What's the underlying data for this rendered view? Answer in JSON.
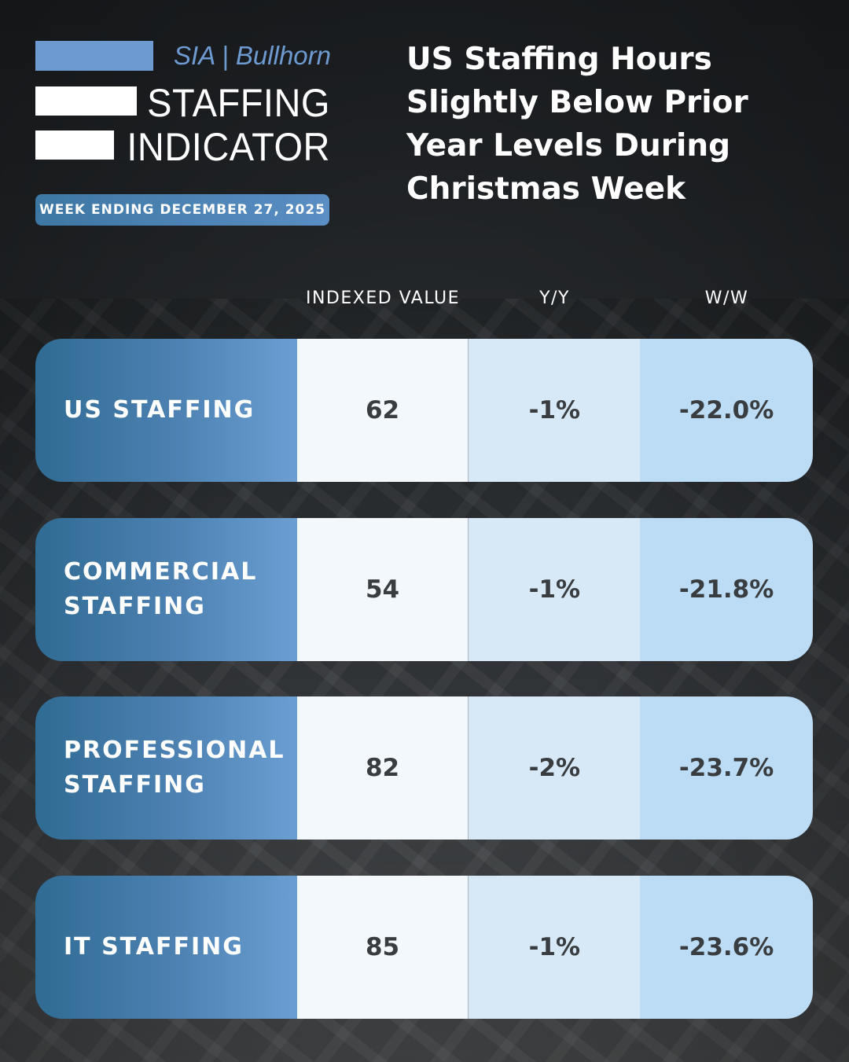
{
  "brand": {
    "name": "SIA | Bullhorn",
    "title_line1": "STAFFING",
    "title_line2": "INDICATOR"
  },
  "week_label": "WEEK ENDING DECEMBER 27, 2025",
  "headline": [
    "US Staffing Hours",
    "Slightly Below Prior",
    "Year Levels During",
    "Christmas Week"
  ],
  "columns": {
    "indexed_value": "INDEXED VALUE",
    "yy": "Y/Y",
    "ww": "W/W"
  },
  "rows": [
    {
      "label": "US STAFFING",
      "indexed_value": "62",
      "yy": "-1%",
      "ww": "-22.0%"
    },
    {
      "label": "COMMERCIAL STAFFING",
      "indexed_value": "54",
      "yy": "-1%",
      "ww": "-21.8%"
    },
    {
      "label": "PROFESSIONAL STAFFING",
      "indexed_value": "82",
      "yy": "-2%",
      "ww": "-23.7%"
    },
    {
      "label": "IT STAFFING",
      "indexed_value": "85",
      "yy": "-1%",
      "ww": "-23.6%"
    }
  ],
  "colors": {
    "accent_blue": "#6d9bd1",
    "label_dark": "#2f6b93",
    "cell_light": "#f3f8fc",
    "cell_mid": "#d7e8f6",
    "cell_blue": "#bbdcf4"
  }
}
